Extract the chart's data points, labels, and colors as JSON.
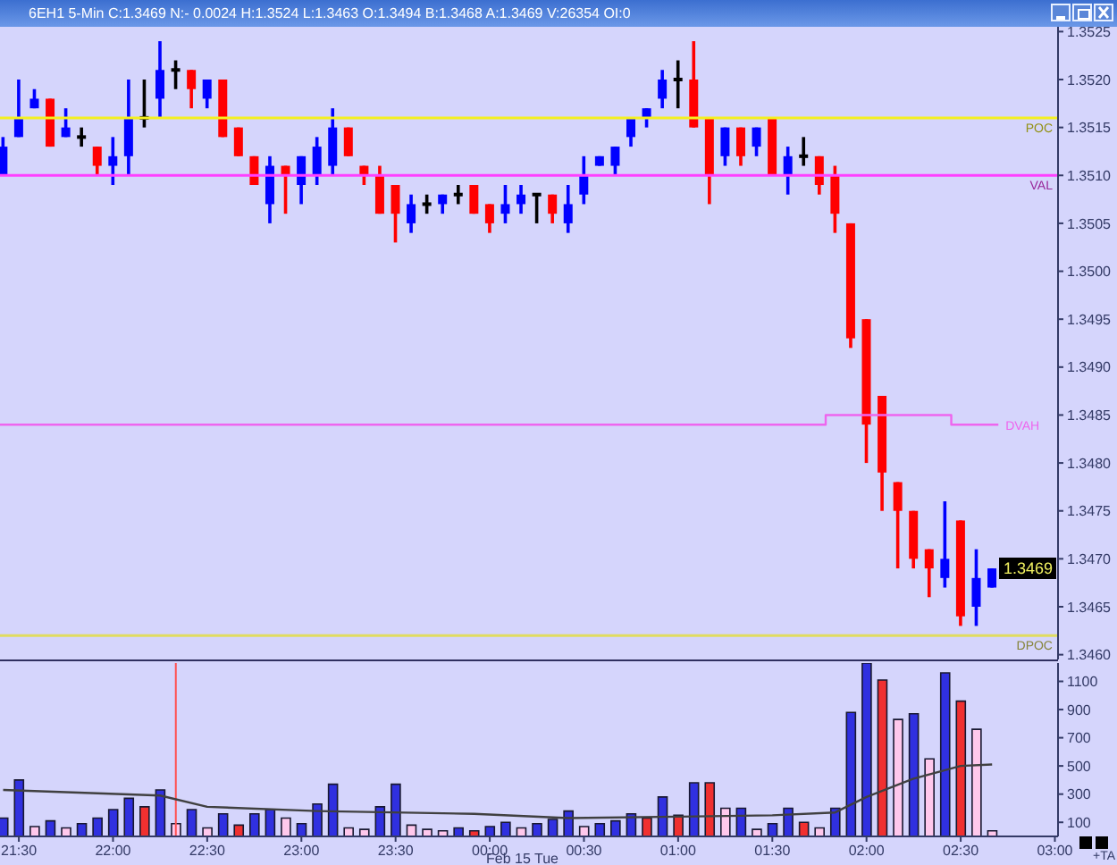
{
  "chart_data": [
    {
      "type": "candlestick",
      "title": "6EH1 5-Min C:1.3469 N:- 0.0024 H:1.3524 L:1.3463 O:1.3494 B:1.3468 A:1.3469 V:26354 OI:0",
      "x": [
        "--02-14T21:25",
        "--02-14T21:30",
        "--02-14T21:35",
        "--02-14T21:40",
        "--02-14T21:45",
        "--02-14T21:50",
        "--02-14T21:55",
        "--02-14T22:00",
        "--02-14T22:05",
        "--02-14T22:10",
        "--02-14T22:15",
        "--02-14T22:20",
        "--02-14T22:25",
        "--02-14T22:30",
        "--02-14T22:35",
        "--02-14T22:40",
        "--02-14T22:45",
        "--02-14T22:50",
        "--02-14T22:55",
        "--02-14T23:00",
        "--02-14T23:05",
        "--02-14T23:10",
        "--02-14T23:15",
        "--02-14T23:20",
        "--02-14T23:25",
        "--02-14T23:30",
        "--02-14T23:35",
        "--02-14T23:40",
        "--02-14T23:45",
        "--02-14T23:50",
        "--02-14T23:55",
        "--02-15T00:00",
        "--02-15T00:05",
        "--02-15T00:10",
        "--02-15T00:15",
        "--02-15T00:20",
        "--02-15T00:25",
        "--02-15T00:30",
        "--02-15T00:35",
        "--02-15T00:40",
        "--02-15T00:45",
        "--02-15T00:50",
        "--02-15T00:55",
        "--02-15T01:00",
        "--02-15T01:05",
        "--02-15T01:10",
        "--02-15T01:15",
        "--02-15T01:20",
        "--02-15T01:25",
        "--02-15T01:30",
        "--02-15T01:35",
        "--02-15T01:40",
        "--02-15T01:45",
        "--02-15T01:50",
        "--02-15T01:55",
        "--02-15T02:00",
        "--02-15T02:05",
        "--02-15T02:10",
        "--02-15T02:15",
        "--02-15T02:20",
        "--02-15T02:25",
        "--02-15T02:30",
        "--02-15T02:35",
        "--02-15T02:40"
      ],
      "ohlc": [
        [
          1.351,
          1.3514,
          1.351,
          1.3513
        ],
        [
          1.3514,
          1.352,
          1.3514,
          1.3516
        ],
        [
          1.3517,
          1.3519,
          1.3517,
          1.3518
        ],
        [
          1.3518,
          1.3518,
          1.3513,
          1.3513
        ],
        [
          1.3514,
          1.3517,
          1.3514,
          1.3515
        ],
        [
          1.3514,
          1.3515,
          1.3513,
          1.3514
        ],
        [
          1.3513,
          1.3513,
          1.351,
          1.3511
        ],
        [
          1.3511,
          1.3514,
          1.3509,
          1.3512
        ],
        [
          1.3512,
          1.352,
          1.351,
          1.3516
        ],
        [
          1.3516,
          1.352,
          1.3515,
          1.3516
        ],
        [
          1.3518,
          1.3524,
          1.3516,
          1.3521
        ],
        [
          1.3521,
          1.3522,
          1.3519,
          1.3521
        ],
        [
          1.3521,
          1.3521,
          1.3517,
          1.3519
        ],
        [
          1.3518,
          1.352,
          1.3517,
          1.352
        ],
        [
          1.352,
          1.352,
          1.3514,
          1.3514
        ],
        [
          1.3515,
          1.3515,
          1.3512,
          1.3512
        ],
        [
          1.3512,
          1.3512,
          1.3509,
          1.3509
        ],
        [
          1.3507,
          1.3512,
          1.3505,
          1.3511
        ],
        [
          1.3511,
          1.3511,
          1.3506,
          1.351
        ],
        [
          1.3509,
          1.3512,
          1.3507,
          1.3512
        ],
        [
          1.351,
          1.3514,
          1.3509,
          1.3513
        ],
        [
          1.3511,
          1.3517,
          1.351,
          1.3515
        ],
        [
          1.3515,
          1.3515,
          1.3512,
          1.3512
        ],
        [
          1.3511,
          1.3511,
          1.3509,
          1.351
        ],
        [
          1.351,
          1.3511,
          1.3506,
          1.3506
        ],
        [
          1.3509,
          1.3509,
          1.3503,
          1.3506
        ],
        [
          1.3505,
          1.3508,
          1.3504,
          1.3507
        ],
        [
          1.3507,
          1.3508,
          1.3506,
          1.3507
        ],
        [
          1.3507,
          1.3508,
          1.3506,
          1.3508
        ],
        [
          1.3508,
          1.3509,
          1.3507,
          1.3508
        ],
        [
          1.3509,
          1.3509,
          1.3506,
          1.3506
        ],
        [
          1.3507,
          1.3507,
          1.3504,
          1.3505
        ],
        [
          1.3506,
          1.3509,
          1.3505,
          1.3507
        ],
        [
          1.3507,
          1.3509,
          1.3506,
          1.3508
        ],
        [
          1.3508,
          1.3508,
          1.3505,
          1.3508
        ],
        [
          1.3508,
          1.3508,
          1.3505,
          1.3506
        ],
        [
          1.3505,
          1.3509,
          1.3504,
          1.3507
        ],
        [
          1.3508,
          1.3512,
          1.3507,
          1.351
        ],
        [
          1.3511,
          1.3512,
          1.3511,
          1.3512
        ],
        [
          1.3511,
          1.3513,
          1.351,
          1.3513
        ],
        [
          1.3514,
          1.3516,
          1.3513,
          1.3516
        ],
        [
          1.3516,
          1.3517,
          1.3515,
          1.3517
        ],
        [
          1.3518,
          1.3521,
          1.3517,
          1.352
        ],
        [
          1.352,
          1.3522,
          1.3517,
          1.352
        ],
        [
          1.352,
          1.3524,
          1.3515,
          1.3515
        ],
        [
          1.3516,
          1.3516,
          1.3507,
          1.351
        ],
        [
          1.3512,
          1.3515,
          1.3511,
          1.3515
        ],
        [
          1.3515,
          1.3515,
          1.3511,
          1.3512
        ],
        [
          1.3513,
          1.3515,
          1.3512,
          1.3515
        ],
        [
          1.3516,
          1.3516,
          1.351,
          1.351
        ],
        [
          1.351,
          1.3513,
          1.3508,
          1.3512
        ],
        [
          1.3512,
          1.3514,
          1.3511,
          1.3512
        ],
        [
          1.3512,
          1.3512,
          1.3508,
          1.3509
        ],
        [
          1.351,
          1.3511,
          1.3504,
          1.3506
        ],
        [
          1.3505,
          1.3505,
          1.3492,
          1.3493
        ],
        [
          1.3495,
          1.3495,
          1.348,
          1.3484
        ],
        [
          1.3487,
          1.3487,
          1.3475,
          1.3479
        ],
        [
          1.3478,
          1.3478,
          1.3469,
          1.3475
        ],
        [
          1.3475,
          1.3475,
          1.3469,
          1.347
        ],
        [
          1.3471,
          1.3471,
          1.3466,
          1.3469
        ],
        [
          1.3468,
          1.3476,
          1.3467,
          1.347
        ],
        [
          1.3474,
          1.3474,
          1.3463,
          1.3464
        ],
        [
          1.3465,
          1.3471,
          1.3463,
          1.3468
        ],
        [
          1.3467,
          1.3469,
          1.3467,
          1.3469
        ]
      ],
      "colors": [
        "#0000ff",
        "#0000ff",
        "#0000ff",
        "#ff0000",
        "#0000ff",
        "#000000",
        "#ff0000",
        "#0000ff",
        "#0000ff",
        "#000000",
        "#0000ff",
        "#000000",
        "#ff0000",
        "#0000ff",
        "#ff0000",
        "#ff0000",
        "#ff0000",
        "#0000ff",
        "#ff0000",
        "#0000ff",
        "#0000ff",
        "#0000ff",
        "#ff0000",
        "#ff0000",
        "#ff0000",
        "#ff0000",
        "#0000ff",
        "#000000",
        "#0000ff",
        "#000000",
        "#ff0000",
        "#ff0000",
        "#0000ff",
        "#0000ff",
        "#000000",
        "#ff0000",
        "#0000ff",
        "#0000ff",
        "#0000ff",
        "#0000ff",
        "#0000ff",
        "#0000ff",
        "#0000ff",
        "#000000",
        "#ff0000",
        "#ff0000",
        "#0000ff",
        "#ff0000",
        "#0000ff",
        "#ff0000",
        "#0000ff",
        "#000000",
        "#ff0000",
        "#ff0000",
        "#ff0000",
        "#ff0000",
        "#ff0000",
        "#ff0000",
        "#ff0000",
        "#ff0000",
        "#0000ff",
        "#ff0000",
        "#0000ff",
        "#0000ff"
      ],
      "series": [
        {
          "type": "step",
          "name": "DVAH",
          "color": "#ee66ee",
          "x": [
            "--02-14T21:24",
            "--02-15T01:47",
            "--02-15T02:27",
            "--02-15T02:42"
          ],
          "values": [
            1.3484,
            1.3485,
            1.3484,
            1.3484
          ]
        }
      ],
      "ref_lines": [
        {
          "axis": "y",
          "value": 1.3516,
          "label": "POC",
          "color": "#f4f020"
        },
        {
          "axis": "y",
          "value": 1.351,
          "label": "VAL",
          "color": "#ff40ff"
        },
        {
          "axis": "y",
          "value": 1.3462,
          "label": "DPOC",
          "color": "#e0dc60"
        }
      ],
      "annotations": [
        {
          "text": "1.3469",
          "y": 1.3469
        }
      ],
      "xlim": [
        "--02-14T21:24",
        "--02-15T03:01"
      ],
      "ylim": [
        1.34595,
        1.35255
      ],
      "yticks": [
        {
          "value": 1.346,
          "label": "1.3460"
        },
        1.3465,
        {
          "value": 1.347,
          "label": "1.3470"
        },
        1.3475,
        {
          "value": 1.348,
          "label": "1.3480"
        },
        1.3485,
        {
          "value": 1.349,
          "label": "1.3490"
        },
        1.3495,
        {
          "value": 1.35,
          "label": "1.3500"
        },
        1.3505,
        {
          "value": 1.351,
          "label": "1.3510"
        },
        1.3515,
        {
          "value": 1.352,
          "label": "1.3520"
        },
        1.3525
      ],
      "tick_labels": "y"
    },
    {
      "type": "bar",
      "x": [
        "--02-14T21:25",
        "--02-14T21:30",
        "--02-14T21:35",
        "--02-14T21:40",
        "--02-14T21:45",
        "--02-14T21:50",
        "--02-14T21:55",
        "--02-14T22:00",
        "--02-14T22:05",
        "--02-14T22:10",
        "--02-14T22:15",
        "--02-14T22:20",
        "--02-14T22:25",
        "--02-14T22:30",
        "--02-14T22:35",
        "--02-14T22:40",
        "--02-14T22:45",
        "--02-14T22:50",
        "--02-14T22:55",
        "--02-14T23:00",
        "--02-14T23:05",
        "--02-14T23:10",
        "--02-14T23:15",
        "--02-14T23:20",
        "--02-14T23:25",
        "--02-14T23:30",
        "--02-14T23:35",
        "--02-14T23:40",
        "--02-14T23:45",
        "--02-14T23:50",
        "--02-14T23:55",
        "--02-15T00:00",
        "--02-15T00:05",
        "--02-15T00:10",
        "--02-15T00:15",
        "--02-15T00:20",
        "--02-15T00:25",
        "--02-15T00:30",
        "--02-15T00:35",
        "--02-15T00:40",
        "--02-15T00:45",
        "--02-15T00:50",
        "--02-15T00:55",
        "--02-15T01:00",
        "--02-15T01:05",
        "--02-15T01:10",
        "--02-15T01:15",
        "--02-15T01:20",
        "--02-15T01:25",
        "--02-15T01:30",
        "--02-15T01:35",
        "--02-15T01:40",
        "--02-15T01:45",
        "--02-15T01:50",
        "--02-15T01:55",
        "--02-15T02:00",
        "--02-15T02:05",
        "--02-15T02:10",
        "--02-15T02:15",
        "--02-15T02:20",
        "--02-15T02:25",
        "--02-15T02:30",
        "--02-15T02:35",
        "--02-15T02:40"
      ],
      "series": [
        {
          "type": "bar",
          "values": [
            130,
            400,
            70,
            110,
            60,
            90,
            130,
            190,
            270,
            210,
            330,
            90,
            190,
            60,
            160,
            80,
            160,
            190,
            130,
            90,
            230,
            370,
            60,
            50,
            210,
            370,
            80,
            50,
            40,
            60,
            40,
            70,
            100,
            60,
            90,
            120,
            180,
            70,
            90,
            110,
            160,
            130,
            280,
            150,
            380,
            380,
            200,
            200,
            50,
            90,
            200,
            100,
            60,
            200,
            880,
            1230,
            1110,
            830,
            870,
            550,
            1160,
            960,
            760,
            40
          ],
          "colors": [
            "#3030e0",
            "#3030e0",
            "#ffc8ec",
            "#3030e0",
            "#ffc8ec",
            "#3030e0",
            "#3030e0",
            "#3030e0",
            "#3030e0",
            "#f03030",
            "#3030e0",
            "#ffc8ec",
            "#3030e0",
            "#ffc8ec",
            "#3030e0",
            "#f03030",
            "#3030e0",
            "#3030e0",
            "#ffc8ec",
            "#3030e0",
            "#3030e0",
            "#3030e0",
            "#ffc8ec",
            "#ffc8ec",
            "#3030e0",
            "#3030e0",
            "#ffc8ec",
            "#ffc8ec",
            "#ffc8ec",
            "#3030e0",
            "#f03030",
            "#3030e0",
            "#3030e0",
            "#ffc8ec",
            "#3030e0",
            "#3030e0",
            "#3030e0",
            "#ffc8ec",
            "#3030e0",
            "#3030e0",
            "#3030e0",
            "#f03030",
            "#3030e0",
            "#f03030",
            "#3030e0",
            "#f03030",
            "#ffc8ec",
            "#3030e0",
            "#ffc8ec",
            "#3030e0",
            "#3030e0",
            "#f03030",
            "#ffc8ec",
            "#3030e0",
            "#3030e0",
            "#3030e0",
            "#f03030",
            "#ffc8ec",
            "#3030e0",
            "#ffc8ec",
            "#3030e0",
            "#f03030",
            "#ffc8ec",
            "#ffc8ec"
          ]
        },
        {
          "type": "line",
          "color": "#404040",
          "x": [
            "--02-14T21:25",
            "--02-14T22:15",
            "--02-14T22:30",
            "--02-14T23:05",
            "--02-14T23:55",
            "--02-15T00:25",
            "--02-15T01:00",
            "--02-15T01:30",
            "--02-15T01:50",
            "--02-15T02:00",
            "--02-15T02:15",
            "--02-15T02:30",
            "--02-15T02:40"
          ],
          "values": [
            330,
            290,
            210,
            180,
            160,
            130,
            140,
            150,
            170,
            280,
            410,
            500,
            510
          ]
        }
      ],
      "ref_lines": [
        {
          "axis": "x",
          "value": "--02-14T22:20",
          "color": "#ff5050"
        }
      ],
      "annotations": [
        "Feb 15 Tue",
        "+TA"
      ],
      "xlim": [
        "--02-14T21:24",
        "--02-15T03:01"
      ],
      "xticks": [
        {
          "value": "--02-14T21:30",
          "label": "21:30"
        },
        {
          "value": "--02-14T22:00",
          "label": "22:00"
        },
        {
          "value": "--02-14T22:30",
          "label": "22:30"
        },
        {
          "value": "--02-14T23:00",
          "label": "23:00"
        },
        {
          "value": "--02-14T23:30",
          "label": "23:30"
        },
        {
          "value": "--02-15T00:00",
          "label": "00:00"
        },
        {
          "value": "--02-15T00:30",
          "label": "00:30"
        },
        {
          "value": "--02-15T01:00",
          "label": "01:00"
        },
        {
          "value": "--02-15T01:30",
          "label": "01:30"
        },
        {
          "value": "--02-15T02:00",
          "label": "02:00"
        },
        {
          "value": "--02-15T02:30",
          "label": "02:30"
        },
        {
          "value": "--02-15T03:00",
          "label": "03:00"
        }
      ],
      "ylim": [
        0,
        1230
      ],
      "yticks": [
        100,
        300,
        500,
        700,
        900,
        1100
      ]
    }
  ]
}
